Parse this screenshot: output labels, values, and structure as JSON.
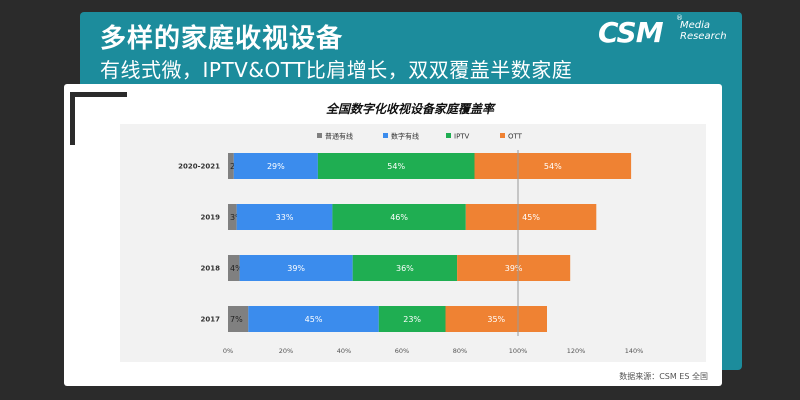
{
  "header": {
    "title": "多样的家庭收视设备",
    "subtitle": "有线式微，IPTV&OTT比肩增长，双双覆盖半数家庭"
  },
  "logo": {
    "name": "CSM",
    "reg": "®",
    "line1": "Media",
    "line2": "Research"
  },
  "source": "数据来源：CSM ES 全国",
  "chart_data": {
    "type": "bar",
    "orientation": "horizontal",
    "stacked": true,
    "title": "全国数字化收视设备家庭覆盖率",
    "categories": [
      "2020-2021",
      "2019",
      "2018",
      "2017"
    ],
    "series": [
      {
        "name": "普通有线",
        "color": "#808080",
        "values": [
          2,
          3,
          4,
          7
        ]
      },
      {
        "name": "数字有线",
        "color": "#3b8ced",
        "values": [
          29,
          33,
          39,
          45
        ]
      },
      {
        "name": "IPTV",
        "color": "#1fae52",
        "values": [
          54,
          46,
          36,
          23
        ]
      },
      {
        "name": "OTT",
        "color": "#ef8233",
        "values": [
          54,
          45,
          39,
          35
        ]
      }
    ],
    "xlim": [
      0,
      140
    ],
    "xticks": [
      0,
      20,
      40,
      60,
      80,
      100,
      120,
      140
    ],
    "tick_suffix": "%",
    "reference_line": 100,
    "legend_position": "top"
  }
}
